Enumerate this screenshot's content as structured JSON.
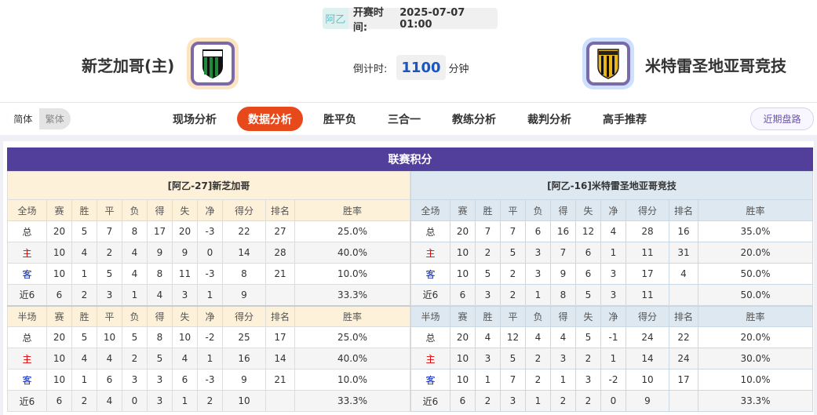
{
  "header": {
    "league": "阿乙",
    "kickoff_label": "开赛时间:",
    "kickoff_time": "2025-07-07 01:00",
    "home_team": "新芝加哥(主)",
    "away_team": "米特雷圣地亚哥竞技",
    "countdown_label": "倒计时:",
    "countdown_value": "1100",
    "countdown_unit": "分钟",
    "home_logo_icon": "shield-green-black-icon",
    "away_logo_icon": "shield-yellow-black-icon"
  },
  "nav": {
    "lang": [
      "简体",
      "繁体"
    ],
    "tabs": [
      "现场分析",
      "数据分析",
      "胜平负",
      "三合一",
      "教练分析",
      "裁判分析",
      "高手推荐"
    ],
    "active_tab": "数据分析",
    "recent": "近期盘路",
    "accent": "#e8491a"
  },
  "standings": {
    "title": "联赛积分",
    "title_color": "#523f9c",
    "columns_full": [
      "全场",
      "赛",
      "胜",
      "平",
      "负",
      "得",
      "失",
      "净",
      "得分",
      "排名",
      "胜率"
    ],
    "columns_half": [
      "半场",
      "赛",
      "胜",
      "平",
      "负",
      "得",
      "失",
      "净",
      "得分",
      "排名",
      "胜率"
    ],
    "home": {
      "title": "[阿乙-27]新芝加哥",
      "full": [
        [
          "总",
          "20",
          "5",
          "7",
          "8",
          "17",
          "20",
          "-3",
          "22",
          "27",
          "25.0%"
        ],
        [
          "主",
          "10",
          "4",
          "2",
          "4",
          "9",
          "9",
          "0",
          "14",
          "28",
          "40.0%"
        ],
        [
          "客",
          "10",
          "1",
          "5",
          "4",
          "8",
          "11",
          "-3",
          "8",
          "21",
          "10.0%"
        ],
        [
          "近6",
          "6",
          "2",
          "3",
          "1",
          "4",
          "3",
          "1",
          "9",
          "",
          "33.3%"
        ]
      ],
      "half": [
        [
          "总",
          "20",
          "5",
          "10",
          "5",
          "8",
          "10",
          "-2",
          "25",
          "17",
          "25.0%"
        ],
        [
          "主",
          "10",
          "4",
          "4",
          "2",
          "5",
          "4",
          "1",
          "16",
          "14",
          "40.0%"
        ],
        [
          "客",
          "10",
          "1",
          "6",
          "3",
          "3",
          "6",
          "-3",
          "9",
          "21",
          "10.0%"
        ],
        [
          "近6",
          "6",
          "2",
          "4",
          "0",
          "3",
          "1",
          "2",
          "10",
          "",
          "33.3%"
        ]
      ]
    },
    "away": {
      "title": "[阿乙-16]米特雷圣地亚哥竞技",
      "full": [
        [
          "总",
          "20",
          "7",
          "7",
          "6",
          "16",
          "12",
          "4",
          "28",
          "16",
          "35.0%"
        ],
        [
          "主",
          "10",
          "2",
          "5",
          "3",
          "7",
          "6",
          "1",
          "11",
          "31",
          "20.0%"
        ],
        [
          "客",
          "10",
          "5",
          "2",
          "3",
          "9",
          "6",
          "3",
          "17",
          "4",
          "50.0%"
        ],
        [
          "近6",
          "6",
          "3",
          "2",
          "1",
          "8",
          "5",
          "3",
          "11",
          "",
          "50.0%"
        ]
      ],
      "half": [
        [
          "总",
          "20",
          "4",
          "12",
          "4",
          "4",
          "5",
          "-1",
          "24",
          "22",
          "20.0%"
        ],
        [
          "主",
          "10",
          "3",
          "5",
          "2",
          "3",
          "2",
          "1",
          "14",
          "24",
          "30.0%"
        ],
        [
          "客",
          "10",
          "1",
          "7",
          "2",
          "1",
          "3",
          "-2",
          "10",
          "17",
          "10.0%"
        ],
        [
          "近6",
          "6",
          "2",
          "3",
          "1",
          "2",
          "2",
          "0",
          "9",
          "",
          "33.3%"
        ]
      ]
    }
  }
}
